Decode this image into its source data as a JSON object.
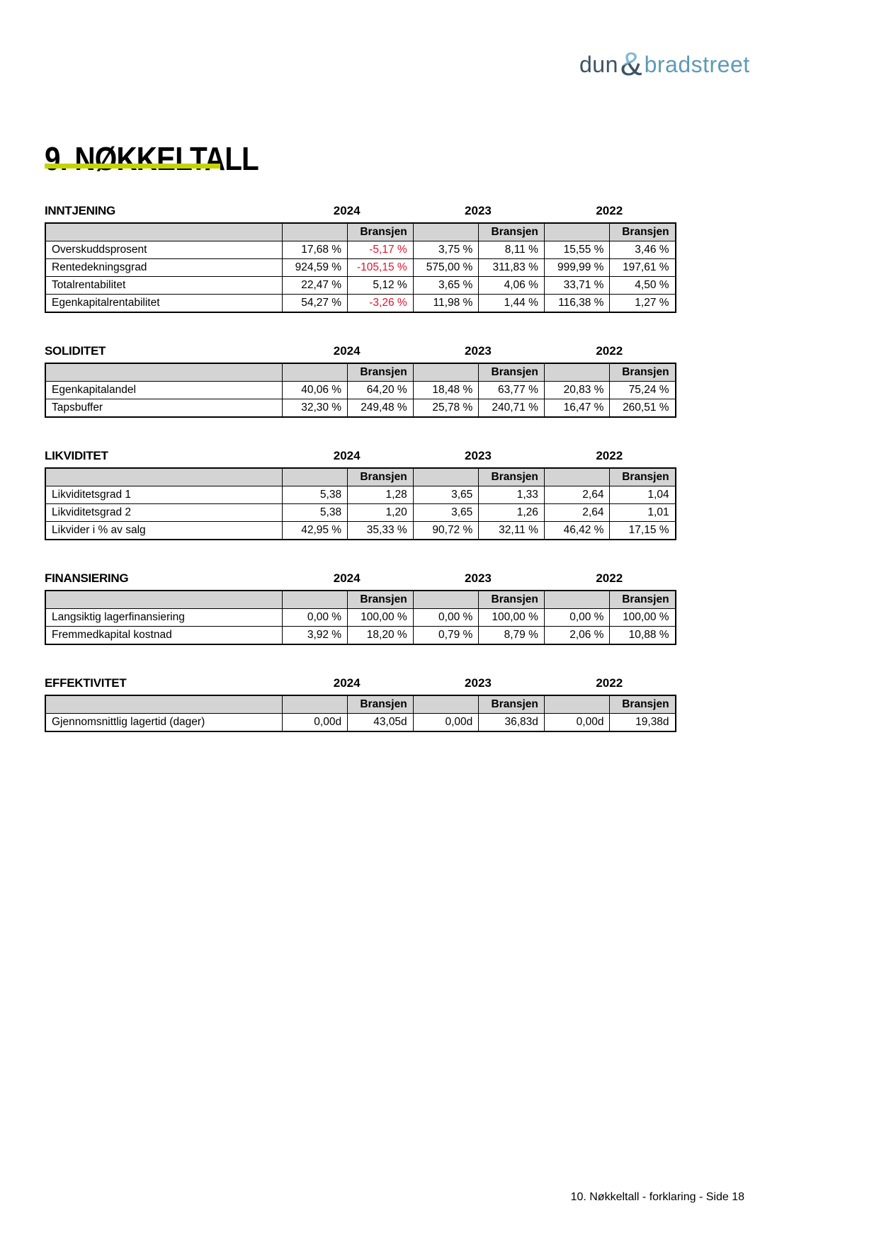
{
  "logo": {
    "dun": "dun",
    "amp": "&",
    "bradstreet": "bradstreet"
  },
  "page_title": "9. NØKKELTALL",
  "years": [
    "2024",
    "2023",
    "2022"
  ],
  "bransjen_label": "Bransjen",
  "footer": "10. Nøkkeltall - forklaring - Side 18",
  "colors": {
    "accent_green": "#c3d500",
    "negative_red": "#e8112d",
    "header_gray": "#d4d4d4",
    "logo_dark": "#3e5266",
    "logo_light": "#5f99b8"
  },
  "tables": [
    {
      "section": "INNTJENING",
      "rows": [
        {
          "label": "Overskuddsprosent",
          "values": [
            "17,68 %",
            "-5,17 %",
            "3,75 %",
            "8,11 %",
            "15,55 %",
            "3,46 %"
          ]
        },
        {
          "label": "Rentedekningsgrad",
          "values": [
            "924,59 %",
            "-105,15 %",
            "575,00 %",
            "311,83 %",
            "999,99 %",
            "197,61 %"
          ]
        },
        {
          "label": "Totalrentabilitet",
          "values": [
            "22,47 %",
            "5,12 %",
            "3,65 %",
            "4,06 %",
            "33,71 %",
            "4,50 %"
          ]
        },
        {
          "label": "Egenkapitalrentabilitet",
          "values": [
            "54,27 %",
            "-3,26 %",
            "11,98 %",
            "1,44 %",
            "116,38 %",
            "1,27 %"
          ]
        }
      ]
    },
    {
      "section": "SOLIDITET",
      "rows": [
        {
          "label": "Egenkapitalandel",
          "values": [
            "40,06 %",
            "64,20 %",
            "18,48 %",
            "63,77 %",
            "20,83 %",
            "75,24 %"
          ]
        },
        {
          "label": "Tapsbuffer",
          "values": [
            "32,30 %",
            "249,48 %",
            "25,78 %",
            "240,71 %",
            "16,47 %",
            "260,51 %"
          ]
        }
      ]
    },
    {
      "section": "LIKVIDITET",
      "rows": [
        {
          "label": "Likviditetsgrad 1",
          "values": [
            "5,38",
            "1,28",
            "3,65",
            "1,33",
            "2,64",
            "1,04"
          ]
        },
        {
          "label": "Likviditetsgrad 2",
          "values": [
            "5,38",
            "1,20",
            "3,65",
            "1,26",
            "2,64",
            "1,01"
          ]
        },
        {
          "label": "Likvider i % av salg",
          "values": [
            "42,95 %",
            "35,33 %",
            "90,72 %",
            "32,11 %",
            "46,42 %",
            "17,15 %"
          ]
        }
      ]
    },
    {
      "section": "FINANSIERING",
      "rows": [
        {
          "label": "Langsiktig lagerfinansiering",
          "values": [
            "0,00 %",
            "100,00 %",
            "0,00 %",
            "100,00 %",
            "0,00 %",
            "100,00 %"
          ]
        },
        {
          "label": "Fremmedkapital kostnad",
          "values": [
            "3,92 %",
            "18,20 %",
            "0,79 %",
            "8,79 %",
            "2,06 %",
            "10,88 %"
          ]
        }
      ]
    },
    {
      "section": "EFFEKTIVITET",
      "rows": [
        {
          "label": "Gjennomsnittlig lagertid (dager)",
          "values": [
            "0,00d",
            "43,05d",
            "0,00d",
            "36,83d",
            "0,00d",
            "19,38d"
          ]
        }
      ]
    }
  ]
}
